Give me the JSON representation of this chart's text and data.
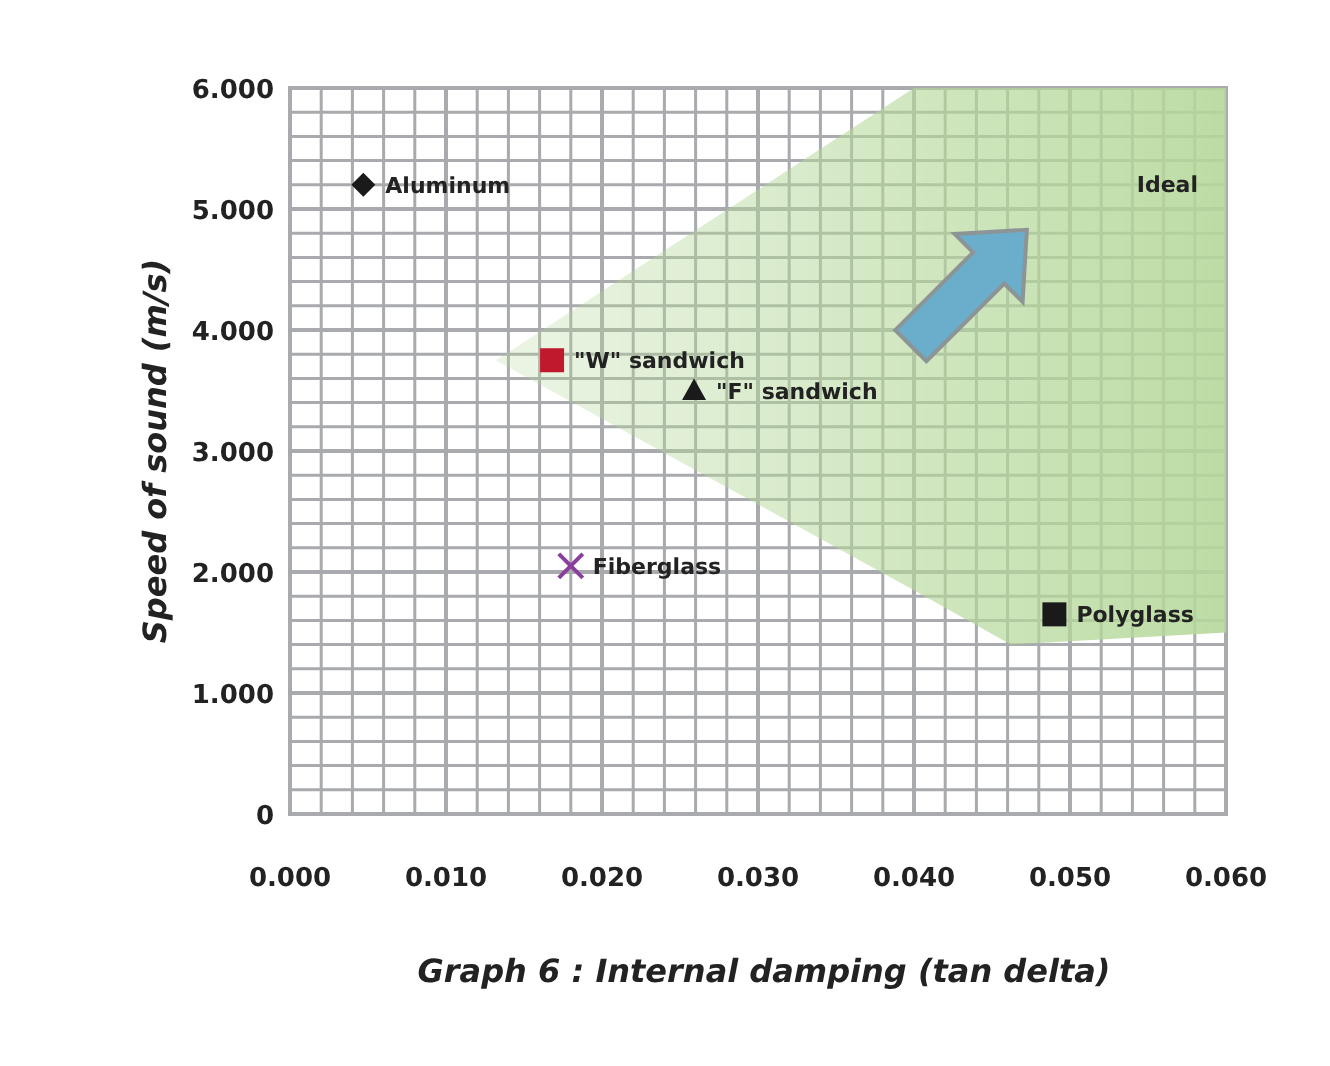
{
  "chart_data": {
    "type": "scatter",
    "xlabel": "Graph 6 : Internal damping (tan delta)",
    "ylabel": "Speed of sound (m/s)",
    "xlim": [
      0,
      0.06
    ],
    "ylim": [
      0,
      6
    ],
    "xticks": [
      {
        "value": 0,
        "label": "0.000"
      },
      {
        "value": 0.002,
        "label": null
      },
      {
        "value": 0.004,
        "label": null
      },
      {
        "value": 0.006,
        "label": null
      },
      {
        "value": 0.008,
        "label": null
      },
      {
        "value": 0.01,
        "label": "0.010"
      },
      {
        "value": 0.012,
        "label": null
      },
      {
        "value": 0.014,
        "label": null
      },
      {
        "value": 0.016,
        "label": null
      },
      {
        "value": 0.018,
        "label": null
      },
      {
        "value": 0.02,
        "label": "0.020"
      },
      {
        "value": 0.022,
        "label": null
      },
      {
        "value": 0.024,
        "label": null
      },
      {
        "value": 0.026,
        "label": null
      },
      {
        "value": 0.028,
        "label": null
      },
      {
        "value": 0.03,
        "label": "0.030"
      },
      {
        "value": 0.032,
        "label": null
      },
      {
        "value": 0.034,
        "label": null
      },
      {
        "value": 0.036,
        "label": null
      },
      {
        "value": 0.038,
        "label": null
      },
      {
        "value": 0.04,
        "label": "0.040"
      },
      {
        "value": 0.042,
        "label": null
      },
      {
        "value": 0.044,
        "label": null
      },
      {
        "value": 0.046,
        "label": null
      },
      {
        "value": 0.048,
        "label": null
      },
      {
        "value": 0.05,
        "label": "0.050"
      },
      {
        "value": 0.052,
        "label": null
      },
      {
        "value": 0.054,
        "label": null
      },
      {
        "value": 0.056,
        "label": null
      },
      {
        "value": 0.058,
        "label": null
      },
      {
        "value": 0.06,
        "label": "0.060"
      }
    ],
    "yticks": [
      {
        "value": 0,
        "label": "0"
      },
      {
        "value": 0.2,
        "label": null
      },
      {
        "value": 0.4,
        "label": null
      },
      {
        "value": 0.6,
        "label": null
      },
      {
        "value": 0.8,
        "label": null
      },
      {
        "value": 1,
        "label": "1.000"
      },
      {
        "value": 1.2,
        "label": null
      },
      {
        "value": 1.4,
        "label": null
      },
      {
        "value": 1.6,
        "label": null
      },
      {
        "value": 1.8,
        "label": null
      },
      {
        "value": 2,
        "label": "2.000"
      },
      {
        "value": 2.2,
        "label": null
      },
      {
        "value": 2.4,
        "label": null
      },
      {
        "value": 2.6,
        "label": null
      },
      {
        "value": 2.8,
        "label": null
      },
      {
        "value": 3,
        "label": "3.000"
      },
      {
        "value": 3.2,
        "label": null
      },
      {
        "value": 3.4,
        "label": null
      },
      {
        "value": 3.6,
        "label": null
      },
      {
        "value": 3.8,
        "label": null
      },
      {
        "value": 4,
        "label": "4.000"
      },
      {
        "value": 4.2,
        "label": null
      },
      {
        "value": 4.4,
        "label": null
      },
      {
        "value": 4.6,
        "label": null
      },
      {
        "value": 4.8,
        "label": null
      },
      {
        "value": 5,
        "label": "5.000"
      },
      {
        "value": 5.2,
        "label": null
      },
      {
        "value": 5.4,
        "label": null
      },
      {
        "value": 5.6,
        "label": null
      },
      {
        "value": 5.8,
        "label": null
      },
      {
        "value": 6,
        "label": "6.000"
      }
    ],
    "grid": true,
    "series": [
      {
        "type": "line",
        "color": "#b5d89a",
        "x": [
          0.0132,
          0.04,
          0.0462,
          0.06
        ],
        "values": [
          null,
          null,
          null,
          null
        ],
        "upper": [
          3.75,
          6,
          6,
          6
        ],
        "lower": [
          3.75,
          1.85,
          1.4,
          1.5
        ]
      },
      {
        "name": "Aluminum",
        "color": "#1a1a1a",
        "marker": "diamond",
        "x": [
          0.0047
        ],
        "values": [
          5.2
        ]
      },
      {
        "name": "\"W\" sandwich",
        "color": "#c0192e",
        "marker": "square",
        "x": [
          0.0168
        ],
        "values": [
          3.75
        ]
      },
      {
        "name": "\"F\" sandwich",
        "color": "#1a1a1a",
        "marker": "triangle",
        "x": [
          0.0259
        ],
        "values": [
          3.5
        ]
      },
      {
        "name": "Fiberglass",
        "color": "#8a3f9e",
        "marker": "cross",
        "x": [
          0.018
        ],
        "values": [
          2.05
        ]
      },
      {
        "name": "Polyglass",
        "color": "#1a1a1a",
        "marker": "square",
        "x": [
          0.049
        ],
        "values": [
          1.65
        ]
      }
    ],
    "annotations": [
      "Ideal"
    ]
  }
}
